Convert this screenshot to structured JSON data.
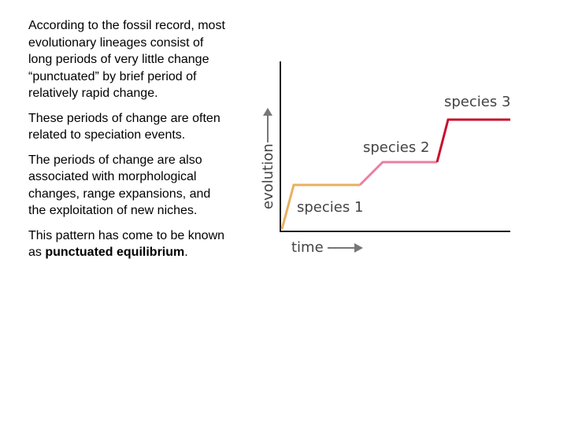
{
  "paragraphs": {
    "p1": "According to the fossil record, most evolutionary lineages consist of long periods of very little change “punctuated” by brief period of relatively rapid change.",
    "p2": "These periods of change are often related to speciation events.",
    "p3": "The periods of change are also associated with morphological changes, range expansions, and the exploitation of new niches.",
    "p4_prefix": "This pattern has come to be known as ",
    "p4_bold": "punctuated equilibrium",
    "p4_suffix": "."
  },
  "diagram": {
    "y_axis_label": "evolution",
    "x_axis_label": "time",
    "species": [
      {
        "label": "species 1",
        "color": "#e8b060"
      },
      {
        "label": "species 2",
        "color": "#ec7fa0"
      },
      {
        "label": "species 3",
        "color": "#c8102e"
      }
    ],
    "axis_color": "#222222",
    "arrow_color": "#777777"
  }
}
